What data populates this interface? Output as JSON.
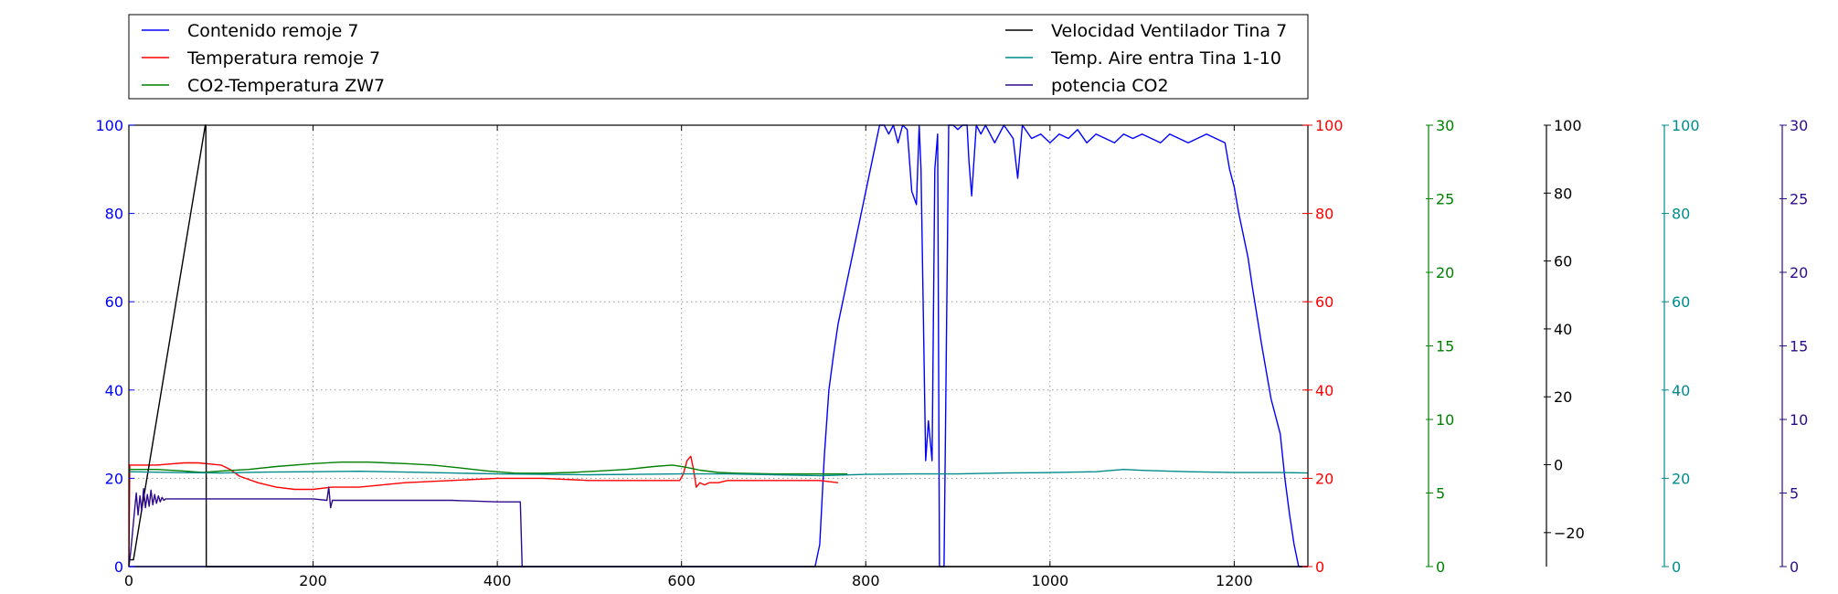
{
  "chart_data": {
    "type": "line",
    "title": "",
    "xlabel": "",
    "xlim": [
      0,
      1280
    ],
    "x_ticks": [
      0,
      200,
      400,
      600,
      800,
      1000,
      1200
    ],
    "grid": true,
    "legend": {
      "placement": "top",
      "columns": 2,
      "entries": [
        {
          "label": "Contenido remoje 7",
          "color": "#0000ff"
        },
        {
          "label": "Temperatura remoje 7",
          "color": "#ff0000"
        },
        {
          "label": "CO2-Temperatura ZW7",
          "color": "#008000"
        },
        {
          "label": "Velocidad Ventilador Tina 7",
          "color": "#000000"
        },
        {
          "label": "Temp. Aire entra Tina 1-10",
          "color": "#008b8b"
        },
        {
          "label": "potencia CO2",
          "color": "#2e0a8c"
        }
      ]
    },
    "axes": [
      {
        "id": "blue",
        "side": "left",
        "color": "#0000ff",
        "ylim": [
          0,
          100
        ],
        "ticks": [
          0,
          20,
          40,
          60,
          80,
          100
        ]
      },
      {
        "id": "red",
        "side": "right",
        "color": "#ff0000",
        "ylim": [
          0,
          100
        ],
        "ticks": [
          0,
          20,
          40,
          60,
          80,
          100
        ]
      },
      {
        "id": "green",
        "side": "right",
        "color": "#008000",
        "ylim": [
          0,
          30
        ],
        "ticks": [
          0,
          5,
          10,
          15,
          20,
          25,
          30
        ]
      },
      {
        "id": "black",
        "side": "right",
        "color": "#000000",
        "ylim": [
          -30,
          100
        ],
        "ticks": [
          -20,
          0,
          20,
          40,
          60,
          80,
          100
        ],
        "tick_labels": [
          "−20",
          "0",
          "20",
          "40",
          "60",
          "80",
          "100"
        ]
      },
      {
        "id": "teal",
        "side": "right",
        "color": "#008b8b",
        "ylim": [
          0,
          100
        ],
        "ticks": [
          0,
          20,
          40,
          60,
          80,
          100
        ]
      },
      {
        "id": "purple",
        "side": "right",
        "color": "#2e0a8c",
        "ylim": [
          0,
          30
        ],
        "ticks": [
          0,
          5,
          10,
          15,
          20,
          25,
          30
        ]
      }
    ],
    "series": [
      {
        "name": "Contenido remoje 7",
        "axis": "blue",
        "color": "#0000ff",
        "x": [
          0,
          700,
          745,
          750,
          755,
          760,
          765,
          770,
          780,
          790,
          800,
          810,
          815,
          820,
          825,
          830,
          835,
          840,
          845,
          850,
          855,
          858,
          860,
          865,
          868,
          872,
          875,
          878,
          880,
          885,
          890,
          895,
          900,
          905,
          910,
          912,
          915,
          920,
          925,
          930,
          940,
          950,
          960,
          965,
          970,
          980,
          990,
          1000,
          1010,
          1020,
          1030,
          1040,
          1050,
          1060,
          1070,
          1080,
          1090,
          1100,
          1110,
          1120,
          1130,
          1140,
          1150,
          1160,
          1170,
          1180,
          1190,
          1195,
          1200,
          1205,
          1210,
          1215,
          1220,
          1230,
          1240,
          1250,
          1255,
          1260,
          1265,
          1270,
          1280
        ],
        "y": [
          0,
          0,
          0,
          5,
          25,
          40,
          48,
          55,
          65,
          75,
          85,
          95,
          100,
          100,
          98,
          100,
          96,
          100,
          99,
          85,
          82,
          100,
          90,
          24,
          33,
          24,
          90,
          98,
          0,
          0,
          100,
          100,
          99,
          100,
          100,
          92,
          84,
          100,
          98,
          100,
          96,
          100,
          97,
          88,
          100,
          97,
          98,
          96,
          98,
          97,
          99,
          96,
          98,
          97,
          96,
          98,
          97,
          98,
          97,
          96,
          98,
          97,
          96,
          97,
          98,
          97,
          96,
          90,
          86,
          80,
          75,
          70,
          63,
          50,
          38,
          30,
          20,
          12,
          5,
          0,
          0
        ]
      },
      {
        "name": "Temperatura remoje 7",
        "axis": "red",
        "color": "#ff0000",
        "x": [
          0,
          1,
          10,
          30,
          60,
          75,
          90,
          100,
          110,
          120,
          140,
          160,
          180,
          200,
          220,
          250,
          300,
          350,
          400,
          450,
          500,
          550,
          598,
          602,
          606,
          610,
          613,
          616,
          620,
          625,
          630,
          640,
          650,
          660,
          700,
          750,
          770
        ],
        "y": [
          0,
          23,
          23,
          23,
          23.5,
          23.5,
          23.2,
          23,
          22,
          20.5,
          19,
          18,
          17.5,
          17.5,
          18,
          18,
          19,
          19.5,
          20,
          20,
          19.5,
          19.5,
          19.5,
          21,
          24,
          25,
          22,
          18,
          19,
          18.5,
          19,
          19,
          19.5,
          19.5,
          19.5,
          19.5,
          19
        ]
      },
      {
        "name": "CO2-Temperatura ZW7",
        "axis": "green",
        "color": "#008000",
        "x": [
          0,
          10,
          30,
          60,
          80,
          100,
          130,
          160,
          200,
          230,
          260,
          280,
          300,
          330,
          360,
          390,
          420,
          450,
          480,
          510,
          540,
          570,
          590,
          605,
          620,
          640,
          660,
          700,
          740,
          780
        ],
        "y": [
          6.6,
          6.6,
          6.6,
          6.5,
          6.4,
          6.5,
          6.6,
          6.8,
          7,
          7.1,
          7.1,
          7.05,
          7.0,
          6.9,
          6.7,
          6.5,
          6.35,
          6.35,
          6.4,
          6.5,
          6.6,
          6.8,
          6.9,
          6.75,
          6.55,
          6.4,
          6.35,
          6.3,
          6.3,
          6.3
        ]
      },
      {
        "name": "Velocidad Ventilador Tina 7",
        "axis": "black",
        "color": "#000000",
        "x": [
          0,
          5,
          83,
          83.5,
          84,
          1280
        ],
        "y": [
          -28,
          -28,
          100,
          100,
          -30,
          -30
        ]
      },
      {
        "name": "Temp. Aire entra Tina 1-10",
        "axis": "teal",
        "color": "#008b8b",
        "x": [
          0,
          50,
          100,
          150,
          200,
          250,
          300,
          350,
          400,
          450,
          500,
          550,
          600,
          650,
          700,
          750,
          800,
          850,
          900,
          950,
          1000,
          1050,
          1080,
          1100,
          1150,
          1200,
          1250,
          1280
        ],
        "y": [
          21.5,
          21.3,
          21.2,
          21.4,
          21.5,
          21.6,
          21.4,
          21.2,
          21,
          20.9,
          20.8,
          20.9,
          21,
          21,
          20.8,
          20.6,
          20.9,
          21,
          21,
          21.2,
          21.3,
          21.5,
          22,
          21.8,
          21.5,
          21.3,
          21.3,
          21.2
        ]
      },
      {
        "name": "potencia CO2",
        "axis": "purple",
        "color": "#2e0a8c",
        "x": [
          0,
          2,
          5,
          8,
          10,
          12,
          14,
          16,
          18,
          20,
          22,
          24,
          26,
          28,
          30,
          32,
          34,
          36,
          38,
          40,
          45,
          50,
          100,
          150,
          200,
          215,
          217,
          219,
          221,
          250,
          300,
          350,
          400,
          425,
          427,
          430
        ],
        "y": [
          0,
          1,
          3,
          5,
          3.5,
          4.8,
          3.8,
          5.3,
          4,
          4.9,
          4.1,
          5.2,
          4.2,
          4.9,
          4.3,
          4.8,
          4.4,
          4.7,
          4.5,
          4.6,
          4.6,
          4.6,
          4.6,
          4.6,
          4.6,
          4.5,
          5.4,
          4.0,
          4.5,
          4.5,
          4.5,
          4.5,
          4.4,
          4.4,
          0,
          0
        ]
      }
    ]
  }
}
